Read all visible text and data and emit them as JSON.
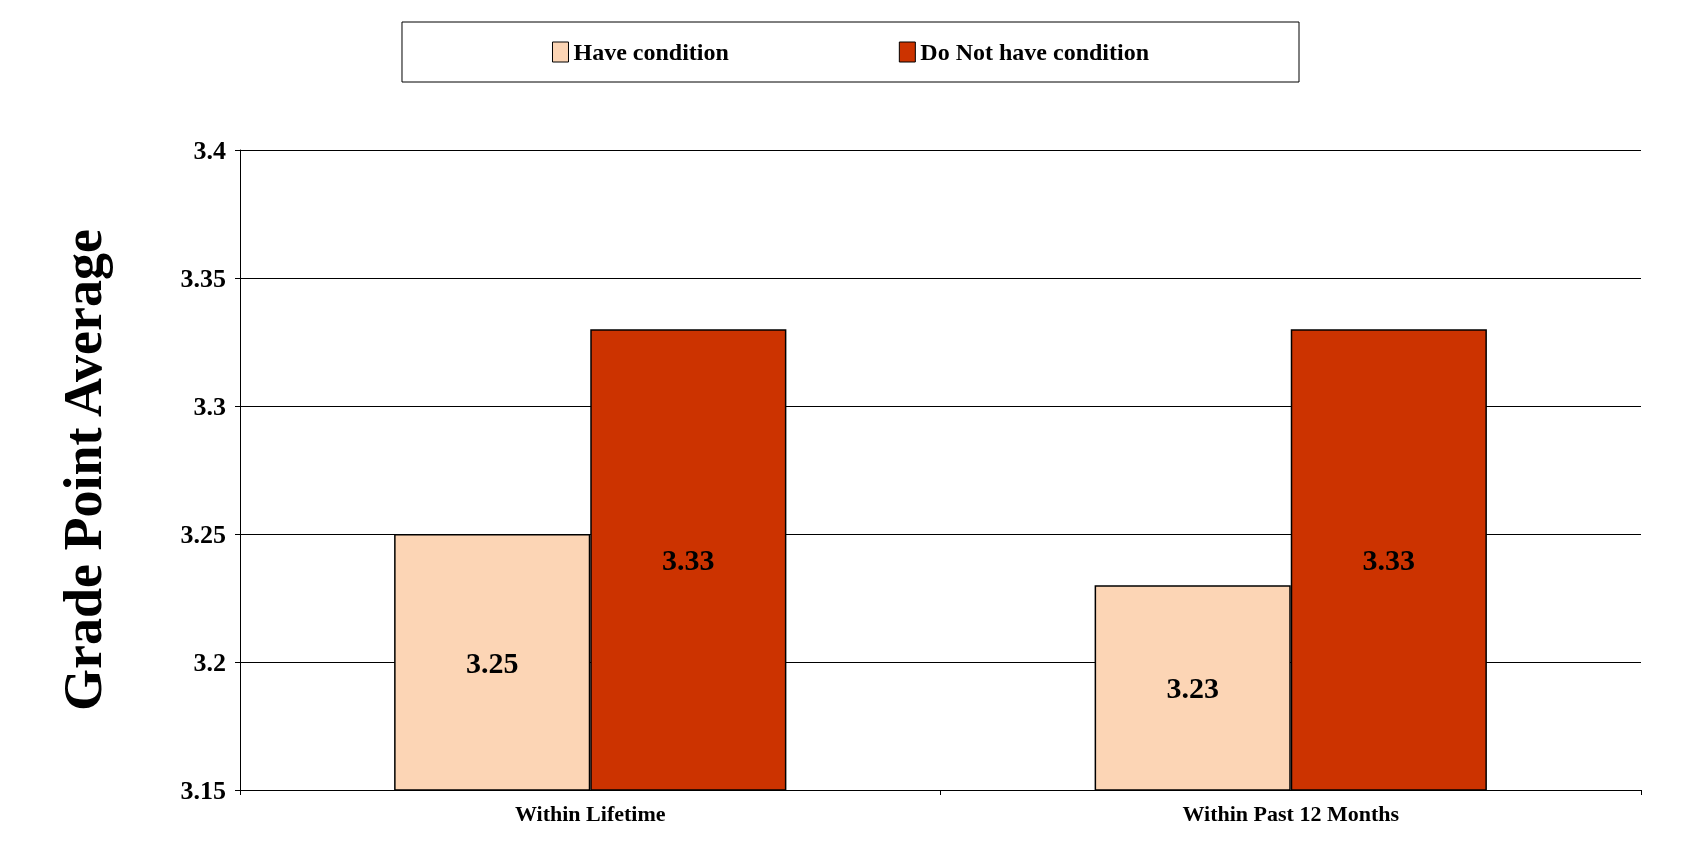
{
  "chart_data": {
    "type": "bar",
    "ylabel": "Grade Point Average",
    "categories": [
      "Within Lifetime",
      "Within Past 12 Months"
    ],
    "series": [
      {
        "name": "Have condition",
        "color": "#fcd5b5",
        "values": [
          3.25,
          3.23
        ]
      },
      {
        "name": "Do Not have condition",
        "color": "#cc3300",
        "values": [
          3.33,
          3.33
        ]
      }
    ],
    "ylim": [
      3.15,
      3.4
    ],
    "yticks": [
      3.15,
      3.2,
      3.25,
      3.3,
      3.35,
      3.4
    ],
    "grid": "y",
    "legend": "top",
    "data_labels": true
  }
}
